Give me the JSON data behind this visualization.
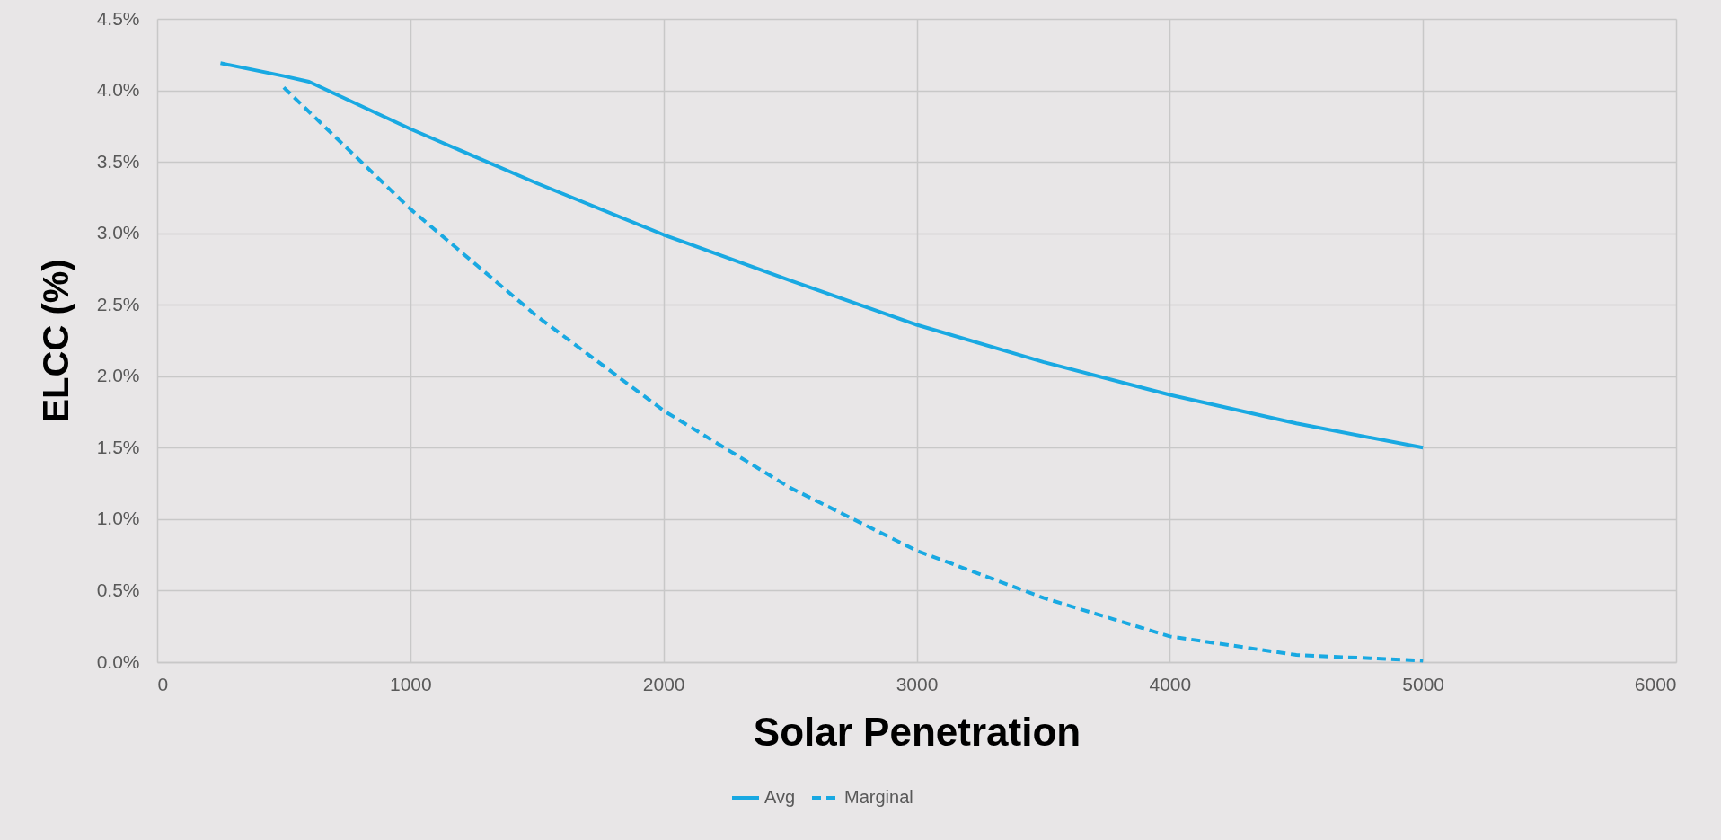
{
  "chart_data": {
    "type": "line",
    "xlabel": "Solar Penetration",
    "ylabel": "ELCC (%)",
    "xlim": [
      0,
      6000
    ],
    "xticks": [
      0,
      1000,
      2000,
      3000,
      4000,
      5000,
      6000
    ],
    "ylim": [
      0,
      4.5
    ],
    "yticks": [
      {
        "value": 0,
        "label": "0.0%"
      },
      {
        "value": 0.5,
        "label": "0.5%"
      },
      {
        "value": 1,
        "label": "1.0%"
      },
      {
        "value": 1.5,
        "label": "1.5%"
      },
      {
        "value": 2,
        "label": "2.0%"
      },
      {
        "value": 2.5,
        "label": "2.5%"
      },
      {
        "value": 3,
        "label": "3.0%"
      },
      {
        "value": 3.5,
        "label": "3.5%"
      },
      {
        "value": 4,
        "label": "4.0%"
      },
      {
        "value": 4.5,
        "label": "4.5%"
      }
    ],
    "grid": true,
    "legend": "bottom",
    "series": [
      {
        "name": "Avg",
        "color": "#19a9e2",
        "line_style": "solid",
        "x": [
          250,
          500,
          600,
          1000,
          1500,
          2000,
          2500,
          3000,
          3500,
          4000,
          4500,
          5000
        ],
        "values": [
          4.19,
          4.1,
          4.06,
          3.73,
          3.35,
          2.99,
          2.67,
          2.36,
          2.1,
          1.87,
          1.67,
          1.5
        ]
      },
      {
        "name": "Marginal",
        "color": "#19a9e2",
        "line_style": "dashed",
        "x": [
          500,
          1000,
          1500,
          2000,
          2500,
          3000,
          3500,
          4000,
          4500,
          5000
        ],
        "values": [
          4.02,
          3.17,
          2.42,
          1.76,
          1.22,
          0.78,
          0.45,
          0.18,
          0.05,
          0.01
        ]
      }
    ]
  }
}
